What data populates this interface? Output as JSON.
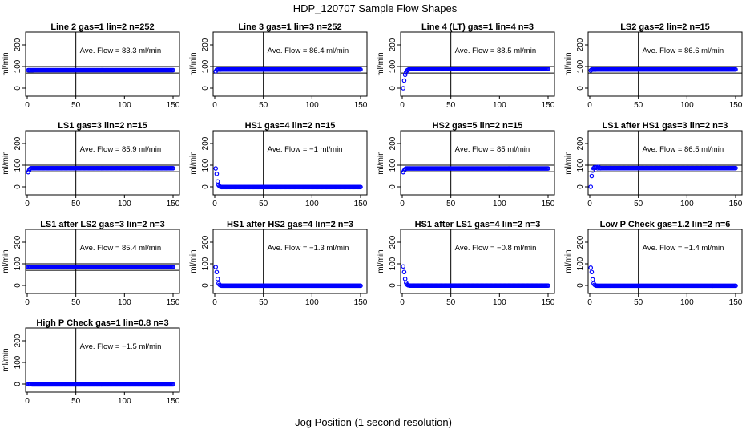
{
  "figure": {
    "title": "HDP_120707  Sample Flow Shapes",
    "xlabel": "Jog Position (1 second resolution)"
  },
  "chart_data": [
    {
      "type": "scatter",
      "title": "Line 2 gas=1 lin=2 n=252",
      "annotation": "Ave. Flow =  83.3  ml/min",
      "ylabel": "ml/min",
      "xlim": [
        0,
        150
      ],
      "ylim": [
        0,
        200
      ],
      "xticks": [
        0,
        50,
        100,
        150
      ],
      "yticks": [
        0,
        100,
        200
      ],
      "ref_x": 50,
      "ref_y": [
        70,
        100
      ],
      "steady": 83.3,
      "start": [
        83,
        83,
        83,
        83,
        83,
        83
      ]
    },
    {
      "type": "scatter",
      "title": "Line 3 gas=1 lin=3 n=252",
      "annotation": "Ave. Flow =  86.4  ml/min",
      "ylabel": "ml/min",
      "xlim": [
        0,
        150
      ],
      "ylim": [
        0,
        200
      ],
      "xticks": [
        0,
        50,
        100,
        150
      ],
      "yticks": [
        0,
        100,
        200
      ],
      "ref_x": 50,
      "ref_y": [
        70,
        100
      ],
      "steady": 86.4,
      "start": [
        78,
        85,
        86,
        86,
        86,
        86
      ]
    },
    {
      "type": "scatter",
      "title": "Line 4 (LT) gas=1 lin=4 n=3",
      "annotation": "Ave. Flow =  88.5  ml/min",
      "ylabel": "ml/min",
      "xlim": [
        0,
        150
      ],
      "ylim": [
        0,
        200
      ],
      "xticks": [
        0,
        50,
        100,
        150
      ],
      "yticks": [
        0,
        100,
        200
      ],
      "ref_x": 50,
      "ref_y": [
        70,
        100
      ],
      "steady": 88.5,
      "start": [
        0,
        35,
        62,
        75,
        82,
        85,
        87,
        88
      ]
    },
    {
      "type": "scatter",
      "title": "LS2 gas=2 lin=2 n=15",
      "annotation": "Ave. Flow =  86.6  ml/min",
      "ylabel": "ml/min",
      "xlim": [
        0,
        150
      ],
      "ylim": [
        0,
        200
      ],
      "xticks": [
        0,
        50,
        100,
        150
      ],
      "yticks": [
        0,
        100,
        200
      ],
      "ref_x": 50,
      "ref_y": [
        70,
        100
      ],
      "steady": 86.6,
      "start": [
        82,
        86,
        86,
        86,
        86,
        86
      ]
    },
    {
      "type": "scatter",
      "title": "LS1 gas=3 lin=2 n=15",
      "annotation": "Ave. Flow =  85.9  ml/min",
      "ylabel": "ml/min",
      "xlim": [
        0,
        150
      ],
      "ylim": [
        0,
        200
      ],
      "xticks": [
        0,
        50,
        100,
        150
      ],
      "yticks": [
        0,
        100,
        200
      ],
      "ref_x": 50,
      "ref_y": [
        70,
        100
      ],
      "steady": 85.9,
      "start": [
        68,
        77,
        84,
        86,
        86,
        86
      ]
    },
    {
      "type": "scatter",
      "title": "HS1 gas=4 lin=2 n=15",
      "annotation": "Ave. Flow =  −1  ml/min",
      "ylabel": "ml/min",
      "xlim": [
        0,
        150
      ],
      "ylim": [
        0,
        200
      ],
      "xticks": [
        0,
        50,
        100,
        150
      ],
      "yticks": [
        0,
        100,
        200
      ],
      "ref_x": 50,
      "ref_y": null,
      "steady": -1,
      "start": [
        85,
        60,
        25,
        8,
        2,
        0,
        -1
      ]
    },
    {
      "type": "scatter",
      "title": "HS2 gas=5 lin=2 n=15",
      "annotation": "Ave. Flow =  85  ml/min",
      "ylabel": "ml/min",
      "xlim": [
        0,
        150
      ],
      "ylim": [
        0,
        200
      ],
      "xticks": [
        0,
        50,
        100,
        150
      ],
      "yticks": [
        0,
        100,
        200
      ],
      "ref_x": 50,
      "ref_y": [
        70,
        100
      ],
      "steady": 85,
      "start": [
        68,
        76,
        82,
        85,
        85,
        85
      ]
    },
    {
      "type": "scatter",
      "title": "LS1 after HS1 gas=3 lin=2 n=3",
      "annotation": "Ave. Flow =  86.5  ml/min",
      "ylabel": "ml/min",
      "xlim": [
        0,
        150
      ],
      "ylim": [
        0,
        200
      ],
      "xticks": [
        0,
        50,
        100,
        150
      ],
      "yticks": [
        0,
        100,
        200
      ],
      "ref_x": 50,
      "ref_y": [
        70,
        100
      ],
      "steady": 86.5,
      "start": [
        0,
        50,
        75,
        86,
        90,
        88,
        91,
        86,
        92,
        87,
        86
      ]
    },
    {
      "type": "scatter",
      "title": "LS1 after LS2 gas=3 lin=2 n=3",
      "annotation": "Ave. Flow =  85.4  ml/min",
      "ylabel": "ml/min",
      "xlim": [
        0,
        150
      ],
      "ylim": [
        0,
        200
      ],
      "xticks": [
        0,
        50,
        100,
        150
      ],
      "yticks": [
        0,
        100,
        200
      ],
      "ref_x": 50,
      "ref_y": [
        70,
        100
      ],
      "steady": 85.4,
      "start": [
        85,
        85,
        85,
        85,
        85,
        85
      ]
    },
    {
      "type": "scatter",
      "title": "HS1 after HS2 gas=4 lin=2 n=3",
      "annotation": "Ave. Flow =  −1.3  ml/min",
      "ylabel": "ml/min",
      "xlim": [
        0,
        150
      ],
      "ylim": [
        0,
        200
      ],
      "xticks": [
        0,
        50,
        100,
        150
      ],
      "yticks": [
        0,
        100,
        200
      ],
      "ref_x": 50,
      "ref_y": null,
      "steady": -1.3,
      "start": [
        85,
        62,
        30,
        10,
        3,
        0,
        -1
      ]
    },
    {
      "type": "scatter",
      "title": "HS1 after LS1 gas=4 lin=2 n=3",
      "annotation": "Ave. Flow =  −0.8  ml/min",
      "ylabel": "ml/min",
      "xlim": [
        0,
        150
      ],
      "ylim": [
        0,
        200
      ],
      "xticks": [
        0,
        50,
        100,
        150
      ],
      "yticks": [
        0,
        100,
        200
      ],
      "ref_x": 50,
      "ref_y": null,
      "steady": -0.8,
      "start": [
        88,
        62,
        30,
        12,
        4,
        1,
        0
      ]
    },
    {
      "type": "scatter",
      "title": "Low P Check gas=1.2 lin=2 n=6",
      "annotation": "Ave. Flow =  −1.4  ml/min",
      "ylabel": "ml/min",
      "xlim": [
        0,
        150
      ],
      "ylim": [
        0,
        200
      ],
      "xticks": [
        0,
        50,
        100,
        150
      ],
      "yticks": [
        0,
        100,
        200
      ],
      "ref_x": 50,
      "ref_y": null,
      "steady": -1.4,
      "start": [
        82,
        62,
        28,
        10,
        3,
        0,
        -1
      ]
    },
    {
      "type": "scatter",
      "title": "High P Check gas=1 lin=0.8 n=3",
      "annotation": "Ave. Flow =  −1.5  ml/min",
      "ylabel": "ml/min",
      "xlim": [
        0,
        150
      ],
      "ylim": [
        0,
        200
      ],
      "xticks": [
        0,
        50,
        100,
        150
      ],
      "yticks": [
        0,
        100,
        200
      ],
      "ref_x": 50,
      "ref_y": null,
      "steady": -1.5,
      "start": [
        -1,
        -1,
        -1,
        -1
      ]
    }
  ],
  "colors": {
    "points": "#0000ff",
    "axes": "#000000"
  }
}
